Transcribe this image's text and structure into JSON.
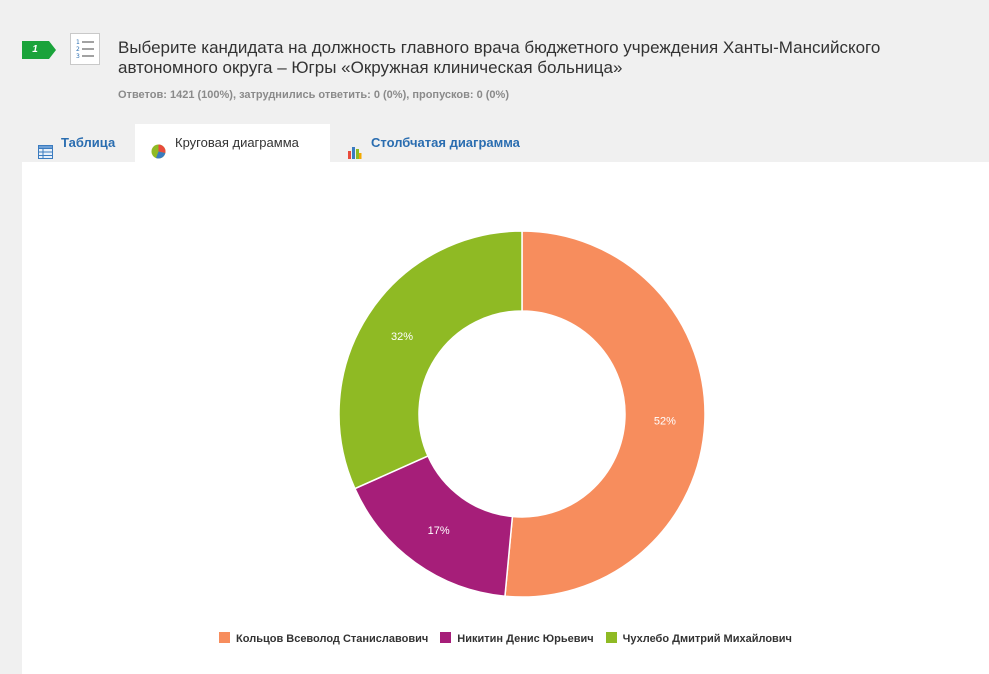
{
  "question": {
    "number": "1",
    "title": "Выберите кандидата на должность главного врача бюджетного учреждения Ханты-Мансийского автономного округа – Югры «Окружная клиническая больница»",
    "stats": "Ответов: 1421 (100%), затруднились ответить: 0 (0%), пропусков: 0 (0%)",
    "number_badge_color": "#1aa33a",
    "type_icon": "numbered-list-icon"
  },
  "tabs": [
    {
      "label": "Таблица",
      "icon": "table-icon"
    },
    {
      "label": "Круговая диаграмма",
      "icon": "pie-chart-icon"
    },
    {
      "label": "Столбчатая диаграмма",
      "icon": "bar-chart-icon"
    }
  ],
  "chart_data": {
    "type": "pie",
    "style": "donut",
    "categories": [
      "Кольцов Всеволод Станиславович",
      "Никитин Денис Юрьевич",
      "Чухлебо Дмитрий Михайлович"
    ],
    "values": [
      52,
      17,
      32
    ],
    "labels": [
      "52%",
      "17%",
      "32%"
    ],
    "colors": [
      "#f78d5d",
      "#a61e79",
      "#8fba24"
    ],
    "legend_position": "bottom"
  }
}
